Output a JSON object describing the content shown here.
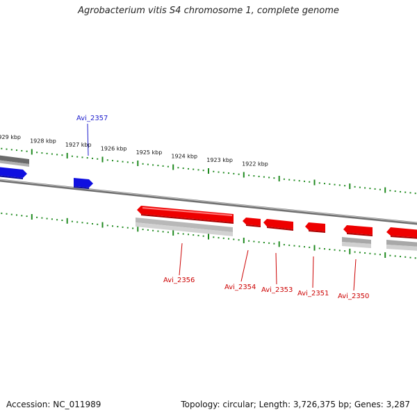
{
  "title": "Agrobacterium vitis S4 chromosome 1, complete genome",
  "footer": {
    "accession": "Accession: NC_011989",
    "summary": "Topology: circular; Length: 3,726,375 bp; Genes: 3,287"
  },
  "colors": {
    "backbone": "#8a8a8a",
    "tick": "#1f8a1f",
    "forward_gene": "#1010e0",
    "reverse_gene": "#ee0000",
    "other_gene": "#9a9a9a",
    "label_forward": "#1a1acc",
    "label_reverse": "#cc0000"
  },
  "ruler": {
    "upper_labels": [
      "1929 kbp",
      "1928 kbp",
      "1927 kbp",
      "1926 kbp",
      "1925 kbp",
      "1924 kbp",
      "1923 kbp",
      "1922 kbp"
    ]
  },
  "genes": [
    {
      "id": "Avi_2357",
      "strand": "forward",
      "labeled": true
    },
    {
      "id": "Avi_2356",
      "strand": "reverse",
      "labeled": true
    },
    {
      "id": "Avi_2354",
      "strand": "reverse",
      "labeled": true
    },
    {
      "id": "Avi_2353",
      "strand": "reverse",
      "labeled": true
    },
    {
      "id": "Avi_2351",
      "strand": "reverse",
      "labeled": true
    },
    {
      "id": "Avi_2350",
      "strand": "reverse",
      "labeled": true
    }
  ]
}
